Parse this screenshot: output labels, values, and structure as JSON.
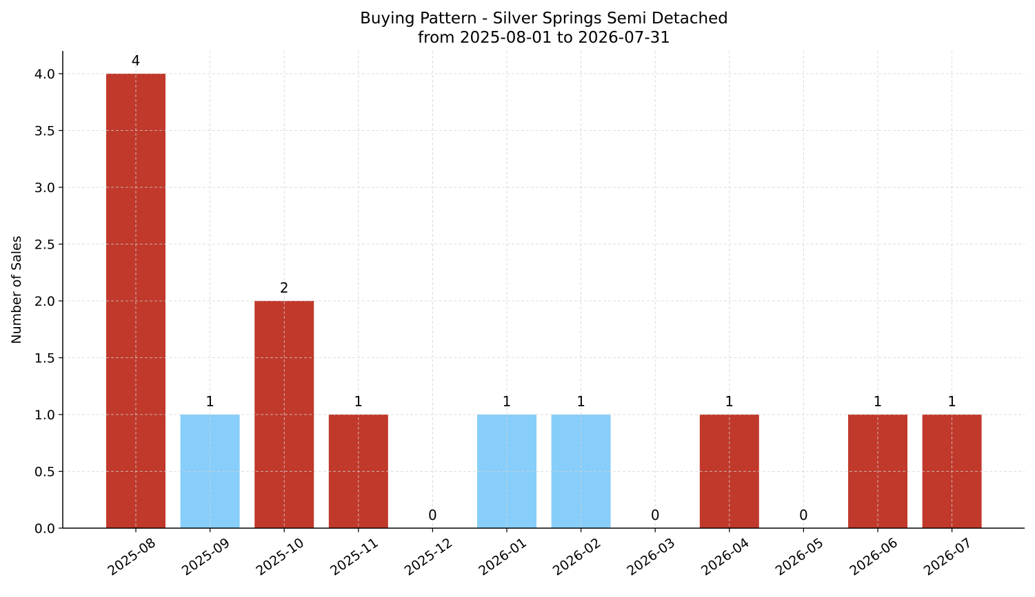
{
  "chart_data": {
    "type": "bar",
    "title": "Buying Pattern - Silver Springs Semi Detached",
    "subtitle": "from 2025-08-01 to 2026-07-31",
    "xlabel": "",
    "ylabel": "Number of Sales",
    "categories": [
      "2025-08",
      "2025-09",
      "2025-10",
      "2025-11",
      "2025-12",
      "2026-01",
      "2026-02",
      "2026-03",
      "2026-04",
      "2026-05",
      "2026-06",
      "2026-07"
    ],
    "values": [
      4,
      1,
      2,
      1,
      0,
      1,
      1,
      0,
      1,
      0,
      1,
      1
    ],
    "bar_colors": [
      "#c0392b",
      "#87cefa",
      "#c0392b",
      "#c0392b",
      "#c0392b",
      "#87cefa",
      "#87cefa",
      "#c0392b",
      "#c0392b",
      "#c0392b",
      "#c0392b",
      "#c0392b"
    ],
    "data_labels": [
      "4",
      "1",
      "2",
      "1",
      "0",
      "1",
      "1",
      "0",
      "1",
      "0",
      "1",
      "1"
    ],
    "ylim": [
      0,
      4.2
    ],
    "y_ticks": [
      0.0,
      0.5,
      1.0,
      1.5,
      2.0,
      2.5,
      3.0,
      3.5,
      4.0
    ],
    "y_tick_labels": [
      "0.0",
      "0.5",
      "1.0",
      "1.5",
      "2.0",
      "2.5",
      "3.0",
      "3.5",
      "4.0"
    ],
    "grid": true,
    "grid_color": "#d3d3d3",
    "legend": "none"
  }
}
